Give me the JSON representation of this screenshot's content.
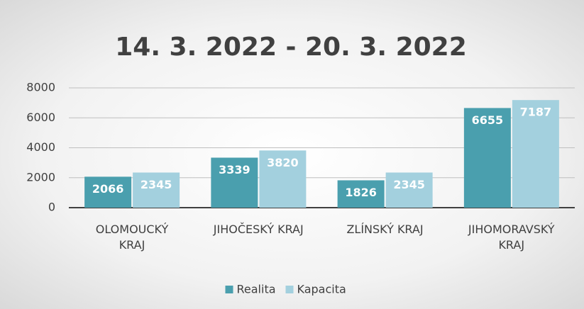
{
  "chart_data": {
    "type": "bar",
    "title": "14. 3. 2022 - 20. 3. 2022",
    "categories": [
      "OLOMOUCKÝ\nKRAJ",
      "JIHOČESKÝ KRAJ",
      "ZLÍNSKÝ KRAJ",
      "JIHOMORAVSKÝ\nKRAJ"
    ],
    "series": [
      {
        "name": "Realita",
        "color": "#4a9fae",
        "values": [
          2066,
          3339,
          1826,
          6655
        ]
      },
      {
        "name": "Kapacita",
        "color": "#a3d0de",
        "values": [
          2345,
          3820,
          2345,
          7187
        ]
      }
    ],
    "ylim": [
      0,
      8000
    ],
    "yticks": [
      0,
      2000,
      4000,
      6000,
      8000
    ],
    "grid": true,
    "legend": "bottom"
  }
}
